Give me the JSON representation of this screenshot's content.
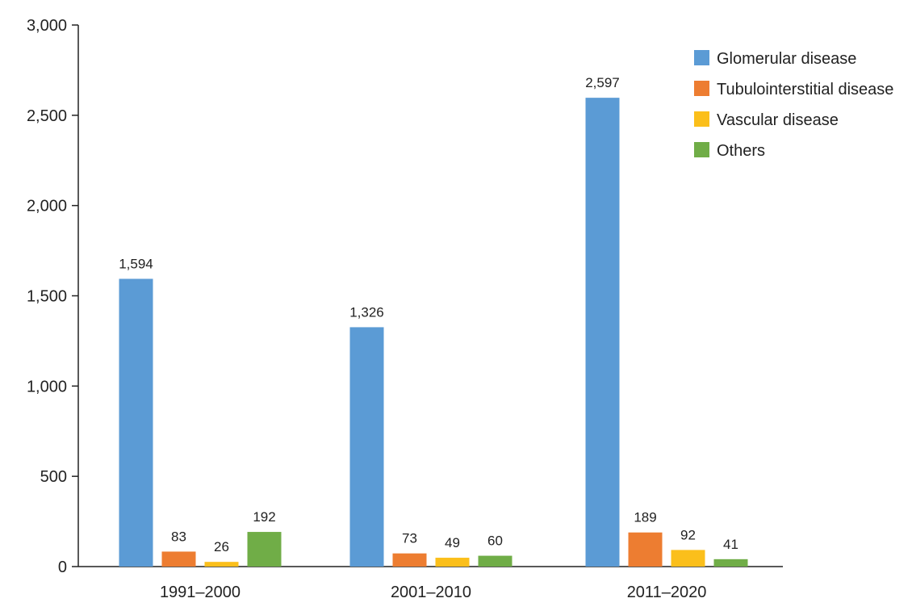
{
  "chart_data": {
    "type": "bar",
    "categories": [
      "1991–2000",
      "2001–2010",
      "2011–2020"
    ],
    "series": [
      {
        "name": "Glomerular disease",
        "color": "#5b9bd5",
        "values": [
          1594,
          1326,
          2597
        ],
        "labels": [
          "1,594",
          "1,326",
          "2,597"
        ]
      },
      {
        "name": "Tubulointerstitial disease",
        "color": "#ed7d31",
        "values": [
          83,
          73,
          189
        ],
        "labels": [
          "83",
          "73",
          "189"
        ]
      },
      {
        "name": "Vascular disease",
        "color": "#fbbf1b",
        "values": [
          26,
          49,
          92
        ],
        "labels": [
          "26",
          "49",
          "92"
        ]
      },
      {
        "name": "Others",
        "color": "#70ad47",
        "values": [
          192,
          60,
          41
        ],
        "labels": [
          "192",
          "60",
          "41"
        ]
      }
    ],
    "y_ticks": [
      0,
      500,
      1000,
      1500,
      2000,
      2500,
      3000
    ],
    "y_tick_labels": [
      "0",
      "500",
      "1,000",
      "1,500",
      "2,000",
      "2,500",
      "3,000"
    ],
    "ylim": [
      0,
      3000
    ],
    "grid": false,
    "legend_position": "top-right"
  }
}
